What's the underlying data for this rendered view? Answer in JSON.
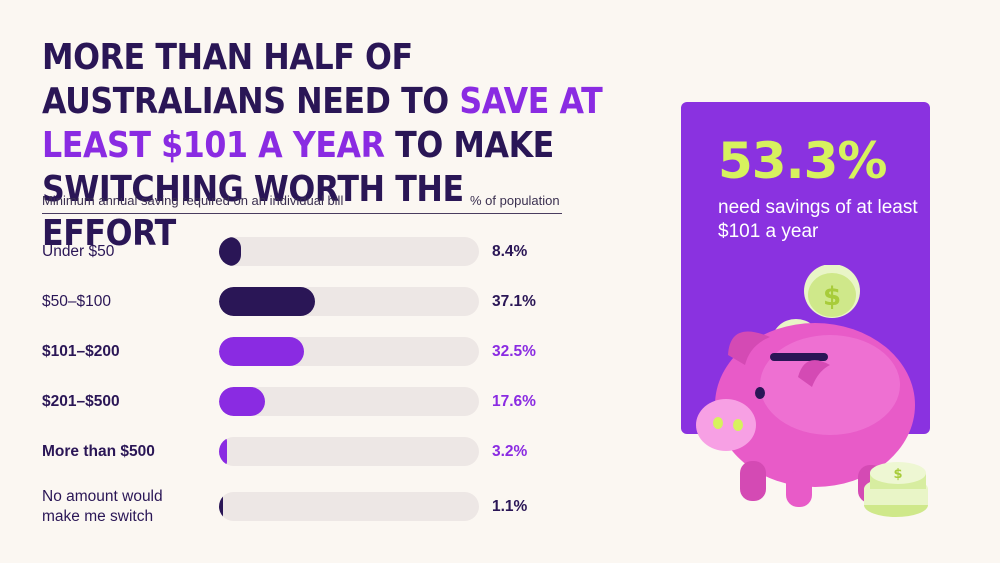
{
  "title": {
    "part1": "More than half of Australians need to ",
    "highlight": "save at least $101 a year",
    "part2": " to make switching worth the effort"
  },
  "headers": {
    "left": "Minimum annual saving required on an individual bill",
    "right": "% of population"
  },
  "callout": {
    "value": "53.3%",
    "description": "need savings of at least $101 a year"
  },
  "colors": {
    "dark": "#2a1656",
    "highlight": "#8a2be2",
    "track": "#ede7e5",
    "callout_bg": "#8a32e0",
    "callout_value": "#d7f25e"
  },
  "icons": [
    "piggy-bank-icon",
    "coin-icon"
  ],
  "chart_data": {
    "type": "bar",
    "orientation": "horizontal",
    "categories": [
      "Under $50",
      "$50–$100",
      "$101–$200",
      "$201–$500",
      "More than $500",
      "No amount would make me switch"
    ],
    "values": [
      8.4,
      37.1,
      32.5,
      17.6,
      3.2,
      1.1
    ],
    "value_labels": [
      "8.4%",
      "37.1%",
      "32.5%",
      "17.6%",
      "3.2%",
      "1.1%"
    ],
    "highlighted": [
      false,
      false,
      true,
      true,
      true,
      false
    ],
    "xlim": [
      0,
      100
    ]
  }
}
